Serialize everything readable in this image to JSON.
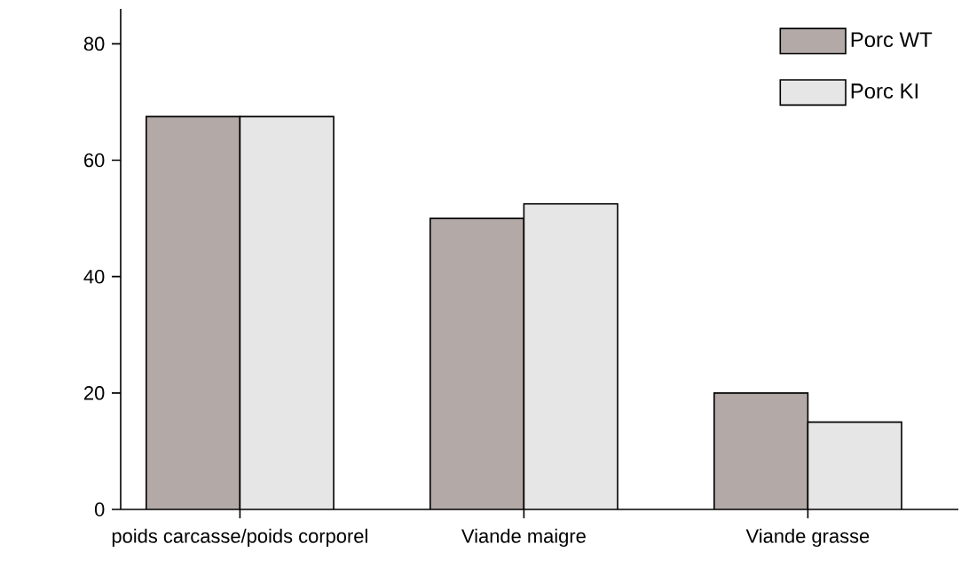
{
  "chart_data": {
    "type": "bar",
    "categories": [
      "poids carcasse/poids corporel",
      "Viande maigre",
      "Viande grasse"
    ],
    "series": [
      {
        "name": "Porc WT",
        "color": "#b3aaa8",
        "values": [
          67.5,
          50,
          20
        ]
      },
      {
        "name": "Porc KI",
        "color": "#e6e6e6",
        "values": [
          67.5,
          52.5,
          15
        ]
      }
    ],
    "ylim": [
      0,
      86
    ],
    "yticks": [
      0,
      20,
      40,
      60,
      80
    ],
    "legend": "top right",
    "grid": false
  }
}
